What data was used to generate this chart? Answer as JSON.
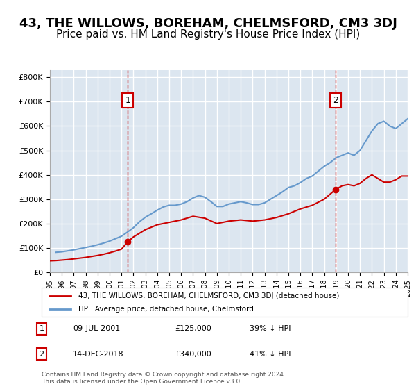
{
  "title": "43, THE WILLOWS, BOREHAM, CHELMSFORD, CM3 3DJ",
  "subtitle": "Price paid vs. HM Land Registry's House Price Index (HPI)",
  "title_fontsize": 13,
  "subtitle_fontsize": 11,
  "background_color": "#ffffff",
  "plot_bg_color": "#dce6f0",
  "grid_color": "#ffffff",
  "ylabel_ticks": [
    "£0",
    "£100K",
    "£200K",
    "£300K",
    "£400K",
    "£500K",
    "£600K",
    "£700K",
    "£800K"
  ],
  "ytick_values": [
    0,
    100000,
    200000,
    300000,
    400000,
    500000,
    600000,
    700000,
    800000
  ],
  "ylim": [
    0,
    830000
  ],
  "x_start_year": 1995,
  "x_end_year": 2025,
  "sale1_date": 2001.52,
  "sale1_price": 125000,
  "sale2_date": 2018.96,
  "sale2_price": 340000,
  "legend_entries": [
    "43, THE WILLOWS, BOREHAM, CHELMSFORD, CM3 3DJ (detached house)",
    "HPI: Average price, detached house, Chelmsford"
  ],
  "annotation1_label": "1",
  "annotation1_date": "09-JUL-2001",
  "annotation1_price": "£125,000",
  "annotation1_pct": "39% ↓ HPI",
  "annotation2_label": "2",
  "annotation2_date": "14-DEC-2018",
  "annotation2_price": "£340,000",
  "annotation2_pct": "41% ↓ HPI",
  "footer": "Contains HM Land Registry data © Crown copyright and database right 2024.\nThis data is licensed under the Open Government Licence v3.0.",
  "line_color_property": "#cc0000",
  "line_color_hpi": "#6699cc",
  "hpi_data": {
    "years": [
      1995.5,
      1996.0,
      1996.5,
      1997.0,
      1997.5,
      1998.0,
      1998.5,
      1999.0,
      1999.5,
      2000.0,
      2000.5,
      2001.0,
      2001.5,
      2002.0,
      2002.5,
      2003.0,
      2003.5,
      2004.0,
      2004.5,
      2005.0,
      2005.5,
      2006.0,
      2006.5,
      2007.0,
      2007.5,
      2008.0,
      2008.5,
      2009.0,
      2009.5,
      2010.0,
      2010.5,
      2011.0,
      2011.5,
      2012.0,
      2012.5,
      2013.0,
      2013.5,
      2014.0,
      2014.5,
      2015.0,
      2015.5,
      2016.0,
      2016.5,
      2017.0,
      2017.5,
      2018.0,
      2018.5,
      2019.0,
      2019.5,
      2020.0,
      2020.5,
      2021.0,
      2021.5,
      2022.0,
      2022.5,
      2023.0,
      2023.5,
      2024.0,
      2024.5,
      2025.0
    ],
    "values": [
      82000,
      84000,
      88000,
      92000,
      97000,
      102000,
      107000,
      113000,
      120000,
      128000,
      138000,
      148000,
      165000,
      183000,
      207000,
      226000,
      240000,
      255000,
      268000,
      275000,
      275000,
      280000,
      290000,
      305000,
      315000,
      308000,
      290000,
      270000,
      270000,
      280000,
      285000,
      290000,
      285000,
      278000,
      278000,
      285000,
      300000,
      315000,
      330000,
      348000,
      355000,
      368000,
      385000,
      395000,
      415000,
      435000,
      450000,
      470000,
      480000,
      490000,
      480000,
      500000,
      540000,
      580000,
      610000,
      620000,
      600000,
      590000,
      610000,
      630000
    ]
  },
  "property_data": {
    "years": [
      1995.0,
      1995.5,
      1996.0,
      1996.5,
      1997.0,
      1997.5,
      1998.0,
      1998.5,
      1999.0,
      1999.5,
      2000.0,
      2000.5,
      2001.0,
      2001.52,
      2002.0,
      2003.0,
      2004.0,
      2005.0,
      2006.0,
      2007.0,
      2008.0,
      2009.0,
      2010.0,
      2011.0,
      2012.0,
      2013.0,
      2014.0,
      2015.0,
      2016.0,
      2017.0,
      2018.0,
      2018.96,
      2019.5,
      2020.0,
      2020.5,
      2021.0,
      2021.5,
      2022.0,
      2022.5,
      2023.0,
      2023.5,
      2024.0,
      2024.5,
      2025.0
    ],
    "values": [
      47000,
      48000,
      50000,
      52000,
      55000,
      58000,
      61000,
      65000,
      69000,
      74000,
      80000,
      87000,
      95000,
      125000,
      145000,
      175000,
      195000,
      205000,
      215000,
      230000,
      222000,
      200000,
      210000,
      215000,
      210000,
      215000,
      225000,
      240000,
      260000,
      275000,
      300000,
      340000,
      355000,
      360000,
      355000,
      365000,
      385000,
      400000,
      385000,
      370000,
      370000,
      380000,
      395000,
      395000
    ]
  }
}
